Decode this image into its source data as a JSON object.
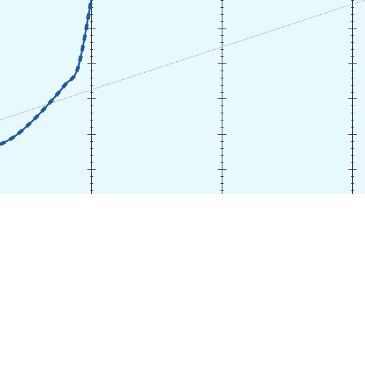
{
  "chart_data": {
    "type": "line",
    "title": "",
    "xlabel": "",
    "ylabel": "",
    "grid": "vertical-axes-with-ticks",
    "legend": "none",
    "colors": {
      "plot_background": "#e8f9fd",
      "curve": "#1e5aa0",
      "reference_line": "#666666",
      "axis": "#333333"
    },
    "xlim": [
      -0.7,
      2.1
    ],
    "ylim": [
      -1.85,
      0.9
    ],
    "vertical_axes_x": [
      0,
      1,
      2
    ],
    "series": [
      {
        "style": "solid-thick-with-dash-overlay",
        "points": [
          [
            -0.7,
            -1.15
          ],
          [
            -0.6,
            -1.05
          ],
          [
            -0.5,
            -0.9
          ],
          [
            -0.4,
            -0.72
          ],
          [
            -0.3,
            -0.52
          ],
          [
            -0.2,
            -0.3
          ],
          [
            -0.1,
            -0.05
          ],
          [
            0.0,
            0.9
          ]
        ]
      },
      {
        "style": "dotted-thin",
        "points": [
          [
            -0.7,
            -0.8
          ],
          [
            2.1,
            0.9
          ]
        ]
      }
    ]
  }
}
